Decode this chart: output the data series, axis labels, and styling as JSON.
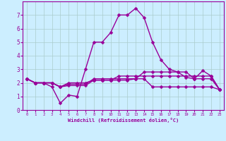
{
  "background_color": "#cceeff",
  "line_color": "#990099",
  "grid_color": "#aacccc",
  "xlabel": "Windchill (Refroidissement éolien,°C)",
  "xlim": [
    -0.5,
    23.5
  ],
  "ylim": [
    0,
    8
  ],
  "xticks": [
    0,
    1,
    2,
    3,
    4,
    5,
    6,
    7,
    8,
    9,
    10,
    11,
    12,
    13,
    14,
    15,
    16,
    17,
    18,
    19,
    20,
    21,
    22,
    23
  ],
  "yticks": [
    0,
    1,
    2,
    3,
    4,
    5,
    6,
    7
  ],
  "lines": [
    {
      "x": [
        0,
        1,
        2,
        3,
        4,
        5,
        6,
        7,
        8,
        9,
        10,
        11,
        12,
        13,
        14,
        15,
        16,
        17,
        18,
        19,
        20,
        21,
        22,
        23
      ],
      "y": [
        2.3,
        2.0,
        2.0,
        1.7,
        0.5,
        1.1,
        1.0,
        3.0,
        5.0,
        5.0,
        5.7,
        7.0,
        7.0,
        7.5,
        6.8,
        5.0,
        3.7,
        3.0,
        2.8,
        2.4,
        2.3,
        2.9,
        2.5,
        1.5
      ]
    },
    {
      "x": [
        0,
        1,
        2,
        3,
        4,
        5,
        6,
        7,
        8,
        9,
        10,
        11,
        12,
        13,
        14,
        15,
        16,
        17,
        18,
        19,
        20,
        21,
        22,
        23
      ],
      "y": [
        2.3,
        2.0,
        2.0,
        2.0,
        1.7,
        1.8,
        1.8,
        1.8,
        2.2,
        2.2,
        2.2,
        2.5,
        2.5,
        2.5,
        2.5,
        2.5,
        2.5,
        2.5,
        2.5,
        2.5,
        2.5,
        2.5,
        2.5,
        1.5
      ]
    },
    {
      "x": [
        0,
        1,
        2,
        3,
        4,
        5,
        6,
        7,
        8,
        9,
        10,
        11,
        12,
        13,
        14,
        15,
        16,
        17,
        18,
        19,
        20,
        21,
        22,
        23
      ],
      "y": [
        2.3,
        2.0,
        2.0,
        2.0,
        1.7,
        1.9,
        1.9,
        1.9,
        2.3,
        2.3,
        2.3,
        2.3,
        2.3,
        2.3,
        2.3,
        1.7,
        1.7,
        1.7,
        1.7,
        1.7,
        1.7,
        1.7,
        1.7,
        1.5
      ]
    },
    {
      "x": [
        0,
        1,
        2,
        3,
        4,
        5,
        6,
        7,
        8,
        9,
        10,
        11,
        12,
        13,
        14,
        15,
        16,
        17,
        18,
        19,
        20,
        21,
        22,
        23
      ],
      "y": [
        2.3,
        2.0,
        2.0,
        2.0,
        1.7,
        2.0,
        2.0,
        2.0,
        2.2,
        2.2,
        2.2,
        2.2,
        2.2,
        2.3,
        2.8,
        2.8,
        2.8,
        2.8,
        2.8,
        2.8,
        2.3,
        2.3,
        2.3,
        1.5
      ]
    }
  ],
  "marker": "D",
  "marker_size": 2.5,
  "line_width": 1.0
}
